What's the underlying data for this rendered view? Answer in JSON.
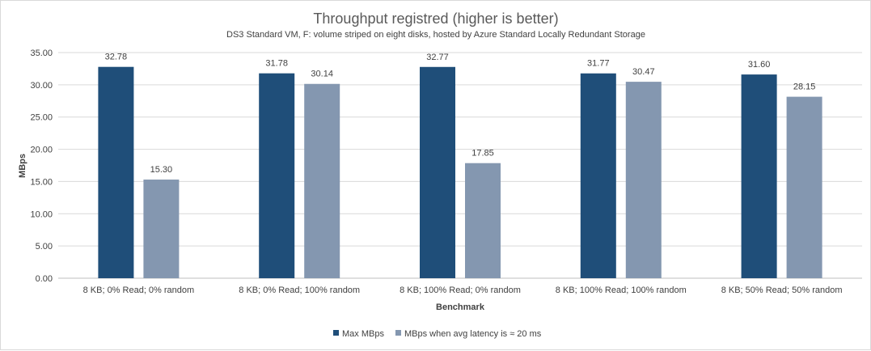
{
  "chart_data": {
    "type": "bar",
    "title": "Throughput registred (higher is better)",
    "subtitle": "DS3 Standard VM, F: volume striped on eight disks, hosted by Azure Standard Locally Redundant Storage",
    "xlabel": "Benchmark",
    "ylabel": "MBps",
    "ylim": [
      0,
      35
    ],
    "yticks": [
      "0.00",
      "5.00",
      "10.00",
      "15.00",
      "20.00",
      "25.00",
      "30.00",
      "35.00"
    ],
    "categories": [
      "8 KB; 0% Read; 0% random",
      "8 KB; 0% Read; 100% random",
      "8 KB; 100% Read; 0% random",
      "8 KB; 100% Read; 100% random",
      "8 KB; 50% Read; 50% random"
    ],
    "series": [
      {
        "name": "Max MBps",
        "color": "#1f4e79",
        "values": [
          32.78,
          31.78,
          32.77,
          31.77,
          31.6
        ],
        "labels": [
          "32.78",
          "31.78",
          "32.77",
          "31.77",
          "31.60"
        ]
      },
      {
        "name": "MBps when avg latency is ≈ 20 ms",
        "color": "#8497b0",
        "values": [
          15.3,
          30.14,
          17.85,
          30.47,
          28.15
        ],
        "labels": [
          "15.30",
          "30.14",
          "17.85",
          "30.47",
          "28.15"
        ]
      }
    ],
    "grid": true,
    "legend": "bottom"
  }
}
